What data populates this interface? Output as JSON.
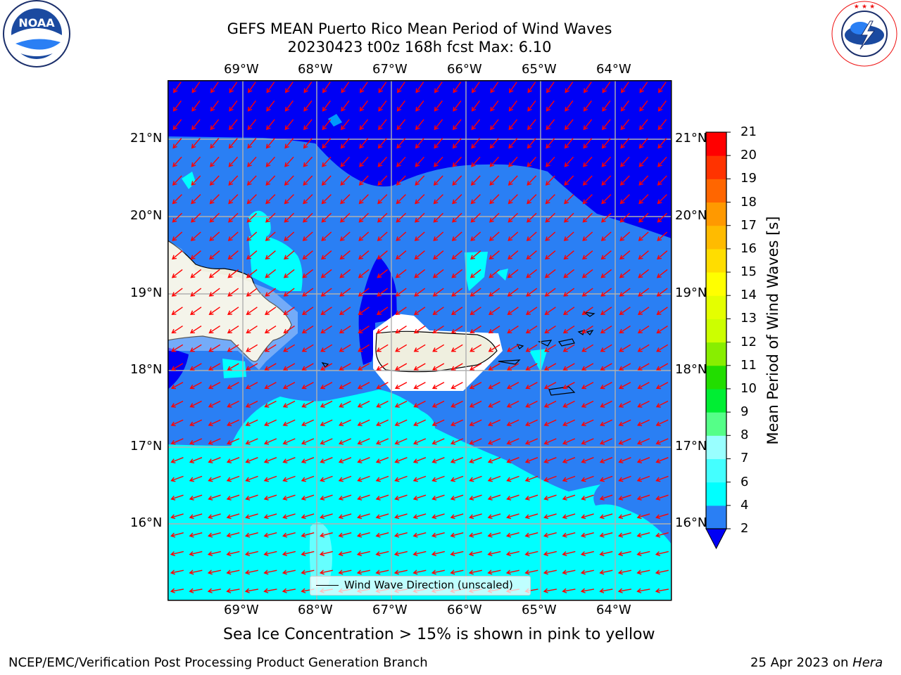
{
  "title_line1": "GEFS MEAN Puerto Rico Mean Period of Wind Waves",
  "title_line2": "20230423 t00z 168h fcst   Max: 6.10",
  "logos": {
    "noaa": {
      "text": "NOAA",
      "ring_text": "NATIONAL OCEANIC AND ATMOSPHERIC ADMINISTRATION · U.S. DEPARTMENT OF COMMERCE"
    },
    "nws": {
      "ring_text": "NATIONAL WEATHER SERVICE"
    }
  },
  "map": {
    "lon_labels": [
      "69°W",
      "68°W",
      "67°W",
      "66°W",
      "65°W",
      "64°W"
    ],
    "lat_labels": [
      "21°N",
      "20°N",
      "19°N",
      "18°N",
      "17°N",
      "16°N"
    ],
    "lon_values": [
      -69,
      -68,
      -67,
      -66,
      -65,
      -64
    ],
    "lat_values": [
      21,
      20,
      19,
      18,
      17,
      16
    ],
    "extent": {
      "lon_min": -70,
      "lon_max": -63.25,
      "lat_min": 15,
      "lat_max": 21.75
    },
    "colors": {
      "band_2_4": "#2a7ff4",
      "band_0_2": "#0000f5",
      "band_4_6": "#00ffff",
      "band_6_7": "#55ffff",
      "land": "#efefdf",
      "arrows": "#ff0000",
      "grid": "#b0b0b0"
    },
    "legend_label": "Wind Wave Direction (unscaled)"
  },
  "colorbar": {
    "label": "Mean Period of Wind Waves [s]",
    "ticks": [
      "2",
      "4",
      "6",
      "7",
      "8",
      "9",
      "10",
      "11",
      "12",
      "13",
      "14",
      "15",
      "16",
      "17",
      "18",
      "19",
      "20",
      "21"
    ],
    "colors": [
      "#2a7ff4",
      "#00ffff",
      "#44ffff",
      "#99ffff",
      "#55ff88",
      "#00ee33",
      "#22dd00",
      "#88ee00",
      "#ccff00",
      "#e4ff00",
      "#ffff00",
      "#ffdd00",
      "#ffbb00",
      "#ff9900",
      "#ff6600",
      "#ff3300",
      "#ff0000"
    ],
    "under_color": "#0000f5"
  },
  "note": "Sea Ice Concentration > 15% is shown in pink to yellow",
  "footer_left": "NCEP/EMC/Verification Post Processing Product Generation Branch",
  "footer_right_date": "25 Apr 2023 on ",
  "footer_right_machine": "Hera"
}
